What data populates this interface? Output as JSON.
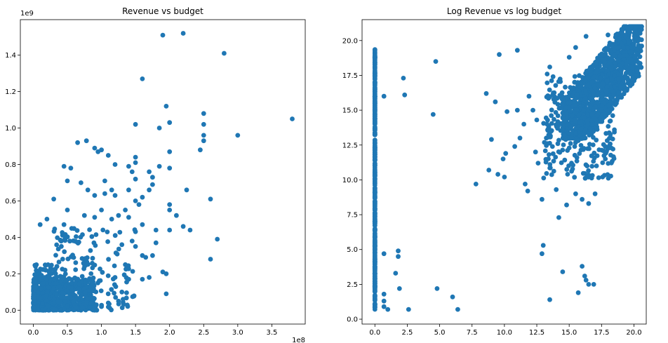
{
  "chart_data": [
    {
      "type": "scatter",
      "title": "Revenue vs budget",
      "xlabel": "",
      "ylabel": "",
      "x_offset_text": "1e8",
      "y_offset_text": "1e9",
      "xlim": [
        -0.19,
        3.99
      ],
      "ylim": [
        -0.076,
        1.595
      ],
      "x_ticks": [
        0.0,
        0.5,
        1.0,
        1.5,
        2.0,
        2.5,
        3.0,
        3.5
      ],
      "x_tick_labels": [
        "0.0",
        "0.5",
        "1.0",
        "1.5",
        "2.0",
        "2.5",
        "3.0",
        "3.5"
      ],
      "y_ticks": [
        0.0,
        0.2,
        0.4,
        0.6,
        0.8,
        1.0,
        1.2,
        1.4
      ],
      "y_tick_labels": [
        "0.0",
        "0.2",
        "0.4",
        "0.6",
        "0.8",
        "1.0",
        "1.2",
        "1.4"
      ],
      "color": "#1f77b4",
      "clusters": [
        {
          "x": [
            0.0,
            0.9
          ],
          "y": [
            0.0,
            0.18
          ],
          "n": 520
        },
        {
          "x": [
            0.0,
            0.35
          ],
          "y": [
            0.0,
            0.25
          ],
          "n": 180
        },
        {
          "x": [
            0.3,
            1.5
          ],
          "y": [
            0.0,
            0.45
          ],
          "n": 160
        }
      ],
      "points": [
        [
          2.2,
          1.52
        ],
        [
          1.9,
          1.51
        ],
        [
          2.8,
          1.41
        ],
        [
          1.6,
          1.27
        ],
        [
          1.95,
          1.12
        ],
        [
          2.0,
          1.03
        ],
        [
          2.5,
          1.08
        ],
        [
          2.5,
          1.02
        ],
        [
          1.5,
          1.02
        ],
        [
          2.5,
          0.96
        ],
        [
          3.0,
          0.96
        ],
        [
          3.8,
          1.05
        ],
        [
          2.5,
          0.93
        ],
        [
          1.85,
          1.0
        ],
        [
          2.45,
          0.88
        ],
        [
          2.0,
          0.87
        ],
        [
          0.65,
          0.92
        ],
        [
          0.78,
          0.93
        ],
        [
          0.9,
          0.89
        ],
        [
          0.95,
          0.87
        ],
        [
          1.0,
          0.88
        ],
        [
          1.1,
          0.85
        ],
        [
          1.5,
          0.84
        ],
        [
          1.5,
          0.81
        ],
        [
          1.4,
          0.79
        ],
        [
          1.2,
          0.8
        ],
        [
          1.45,
          0.76
        ],
        [
          1.7,
          0.76
        ],
        [
          1.85,
          0.79
        ],
        [
          1.75,
          0.73
        ],
        [
          2.0,
          0.78
        ],
        [
          1.75,
          0.69
        ],
        [
          1.5,
          0.72
        ],
        [
          0.45,
          0.79
        ],
        [
          0.55,
          0.78
        ],
        [
          0.3,
          0.61
        ],
        [
          0.5,
          0.71
        ],
        [
          0.7,
          0.7
        ],
        [
          0.8,
          0.66
        ],
        [
          0.9,
          0.63
        ],
        [
          1.05,
          0.71
        ],
        [
          1.05,
          0.64
        ],
        [
          1.15,
          0.66
        ],
        [
          1.2,
          0.63
        ],
        [
          1.4,
          0.66
        ],
        [
          1.5,
          0.6
        ],
        [
          1.6,
          0.62
        ],
        [
          1.7,
          0.66
        ],
        [
          2.25,
          0.66
        ],
        [
          2.6,
          0.61
        ],
        [
          2.0,
          0.58
        ],
        [
          2.0,
          0.55
        ],
        [
          2.1,
          0.52
        ],
        [
          2.2,
          0.46
        ],
        [
          2.0,
          0.44
        ],
        [
          2.3,
          0.44
        ],
        [
          1.8,
          0.44
        ],
        [
          1.6,
          0.47
        ],
        [
          1.4,
          0.51
        ],
        [
          1.35,
          0.55
        ],
        [
          1.55,
          0.58
        ],
        [
          1.25,
          0.52
        ],
        [
          1.15,
          0.5
        ],
        [
          1.0,
          0.55
        ],
        [
          0.9,
          0.51
        ],
        [
          0.75,
          0.52
        ],
        [
          0.5,
          0.55
        ],
        [
          0.2,
          0.5
        ],
        [
          0.1,
          0.47
        ],
        [
          0.45,
          0.47
        ],
        [
          2.7,
          0.39
        ],
        [
          2.6,
          0.28
        ],
        [
          1.9,
          0.21
        ],
        [
          1.95,
          0.2
        ],
        [
          1.95,
          0.09
        ],
        [
          1.6,
          0.17
        ],
        [
          1.7,
          0.18
        ],
        [
          1.8,
          0.37
        ],
        [
          1.75,
          0.3
        ],
        [
          1.6,
          0.3
        ],
        [
          1.65,
          0.29
        ],
        [
          1.5,
          0.35
        ],
        [
          1.45,
          0.38
        ],
        [
          1.3,
          0.36
        ],
        [
          1.35,
          0.25
        ],
        [
          1.4,
          0.17
        ],
        [
          1.3,
          0.1
        ],
        [
          1.25,
          0.05
        ],
        [
          1.2,
          0.18
        ],
        [
          1.1,
          0.04
        ],
        [
          1.0,
          0.02
        ]
      ]
    },
    {
      "type": "scatter",
      "title": "Log Revenue vs log budget",
      "xlabel": "",
      "ylabel": "",
      "xlim": [
        -0.99,
        20.95
      ],
      "ylim": [
        -0.35,
        21.5
      ],
      "x_ticks": [
        0.0,
        2.5,
        5.0,
        7.5,
        10.0,
        12.5,
        15.0,
        17.5,
        20.0
      ],
      "x_tick_labels": [
        "0.0",
        "2.5",
        "5.0",
        "7.5",
        "10.0",
        "12.5",
        "15.0",
        "17.5",
        "20.0"
      ],
      "y_ticks": [
        0.0,
        2.5,
        5.0,
        7.5,
        10.0,
        12.5,
        15.0,
        17.5,
        20.0
      ],
      "y_tick_labels": [
        "0.0",
        "2.5",
        "5.0",
        "7.5",
        "10.0",
        "12.5",
        "15.0",
        "17.5",
        "20.0"
      ],
      "color": "#1f77b4",
      "clusters": [
        {
          "x": [
            0.0,
            0.0
          ],
          "y": [
            0.7,
            19.4
          ],
          "n": 420
        },
        {
          "x": [
            14.5,
            20.6
          ],
          "y": [
            13.0,
            21.0
          ],
          "n": 1200
        },
        {
          "x": [
            13.0,
            18.5
          ],
          "y": [
            10.0,
            17.5
          ],
          "n": 280
        }
      ],
      "points": [
        [
          0.7,
          16.0
        ],
        [
          0.7,
          4.7
        ],
        [
          0.7,
          1.8
        ],
        [
          0.7,
          1.3
        ],
        [
          0.7,
          0.9
        ],
        [
          1.0,
          0.7
        ],
        [
          1.6,
          3.3
        ],
        [
          1.8,
          4.9
        ],
        [
          1.8,
          4.5
        ],
        [
          1.9,
          2.2
        ],
        [
          2.2,
          17.3
        ],
        [
          2.3,
          16.1
        ],
        [
          2.6,
          0.7
        ],
        [
          4.5,
          14.7
        ],
        [
          4.7,
          18.5
        ],
        [
          4.8,
          2.2
        ],
        [
          6.0,
          1.6
        ],
        [
          6.4,
          0.7
        ],
        [
          7.8,
          9.7
        ],
        [
          8.6,
          16.2
        ],
        [
          8.8,
          10.7
        ],
        [
          9.0,
          12.9
        ],
        [
          9.3,
          15.6
        ],
        [
          9.5,
          10.4
        ],
        [
          9.6,
          19.0
        ],
        [
          10.0,
          10.2
        ],
        [
          9.9,
          11.5
        ],
        [
          10.1,
          11.9
        ],
        [
          10.2,
          14.9
        ],
        [
          10.8,
          12.4
        ],
        [
          11.0,
          19.3
        ],
        [
          11.0,
          15.0
        ],
        [
          11.2,
          13.0
        ],
        [
          11.5,
          14.0
        ],
        [
          11.6,
          9.7
        ],
        [
          11.8,
          9.2
        ],
        [
          11.9,
          16.0
        ],
        [
          12.2,
          15.0
        ],
        [
          12.4,
          12.0
        ],
        [
          12.5,
          14.3
        ],
        [
          12.6,
          11.2
        ],
        [
          12.9,
          8.6
        ],
        [
          13.0,
          5.3
        ],
        [
          12.9,
          4.7
        ],
        [
          13.5,
          1.4
        ],
        [
          14.0,
          9.3
        ],
        [
          14.2,
          7.3
        ],
        [
          14.5,
          3.4
        ],
        [
          14.8,
          8.2
        ],
        [
          15.5,
          9.0
        ],
        [
          15.7,
          1.9
        ],
        [
          16.0,
          3.8
        ],
        [
          16.2,
          3.1
        ],
        [
          16.3,
          2.8
        ],
        [
          16.5,
          2.5
        ],
        [
          16.9,
          2.5
        ],
        [
          16.5,
          8.3
        ],
        [
          17.0,
          9.0
        ],
        [
          16.0,
          8.6
        ],
        [
          13.3,
          17.6
        ],
        [
          13.5,
          18.1
        ],
        [
          15.0,
          18.8
        ],
        [
          15.5,
          19.5
        ],
        [
          16.3,
          20.3
        ],
        [
          18.0,
          20.4
        ]
      ]
    }
  ]
}
